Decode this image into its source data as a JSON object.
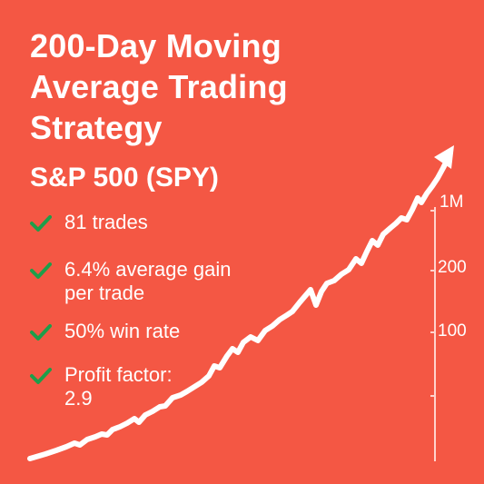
{
  "title": {
    "line1": "200-Day Moving",
    "line2": "Average Trading",
    "line3": "Strategy"
  },
  "subtitle": "S&P 500 (SPY)",
  "stats": [
    {
      "lines": [
        "81 trades"
      ]
    },
    {
      "lines": [
        "6.4% average gain",
        "per trade"
      ]
    },
    {
      "lines": [
        "50% win rate"
      ]
    },
    {
      "lines": [
        "Profit factor:",
        "2.9"
      ]
    }
  ],
  "axis": {
    "ticks": [
      "1M",
      "200",
      "100"
    ]
  },
  "colors": {
    "background": "#F45744",
    "check": "#1E9E4A",
    "line": "#FFFFFF"
  },
  "icons": {
    "bullet": "check-icon",
    "line_end": "arrow-up-icon"
  }
}
